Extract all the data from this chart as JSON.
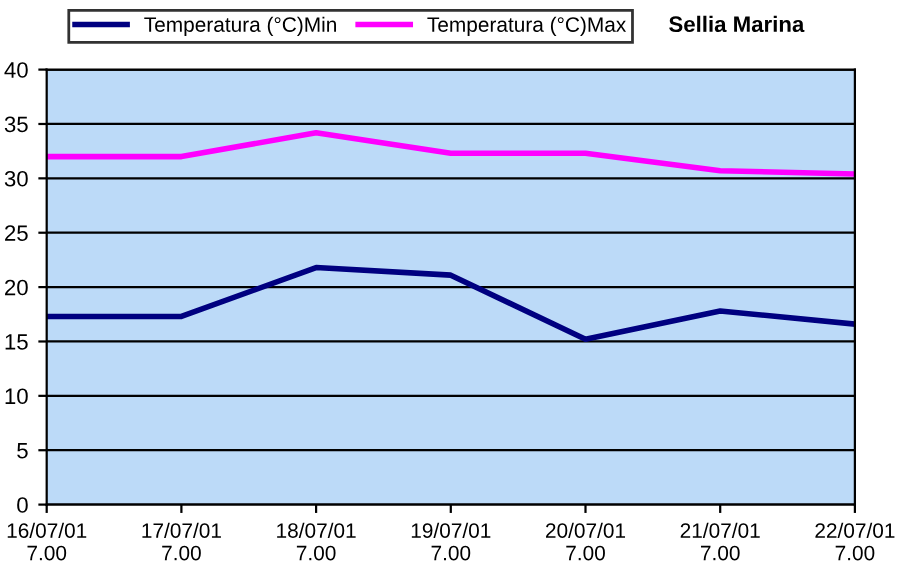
{
  "chart_data": {
    "type": "line",
    "title": "Sellia Marina",
    "categories": [
      "16/07/01\n7.00",
      "17/07/01\n7.00",
      "18/07/01\n7.00",
      "19/07/01\n7.00",
      "20/07/01\n7.00",
      "21/07/01\n7.00",
      "22/07/01\n7.00"
    ],
    "series": [
      {
        "name": "Temperatura (°C)Min",
        "color": "#000080",
        "values": [
          17.3,
          17.3,
          21.8,
          21.1,
          15.2,
          17.8,
          16.6
        ]
      },
      {
        "name": "Temperatura (°C)Max",
        "color": "#ff00ff",
        "values": [
          32.0,
          32.0,
          34.2,
          32.3,
          32.3,
          30.7,
          30.4
        ]
      }
    ],
    "ylim": [
      0,
      40
    ],
    "yticks": [
      0,
      5,
      10,
      15,
      20,
      25,
      30,
      35,
      40
    ],
    "grid": "y",
    "legend": "top left",
    "marker": "none",
    "line_style": "solid"
  }
}
